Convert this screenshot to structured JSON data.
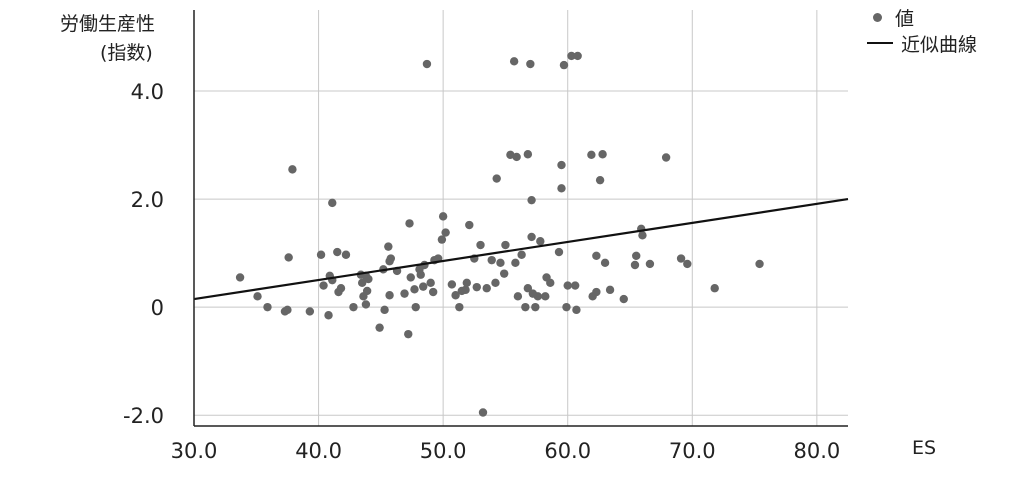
{
  "chart_data": {
    "type": "scatter",
    "title": "",
    "ylabel_lines": [
      "労働生産性",
      "(指数)"
    ],
    "xlabel": "ES",
    "xlim": [
      30,
      82.5
    ],
    "ylim": [
      -2.2,
      5.5
    ],
    "xticks": [
      "30.0",
      "40.0",
      "50.0",
      "60.0",
      "70.0",
      "80.0"
    ],
    "xtick_values": [
      30,
      40,
      50,
      60,
      70,
      80
    ],
    "yticks": [
      "-2.0",
      "0",
      "2.0",
      "4.0"
    ],
    "ytick_values": [
      -2,
      0,
      2,
      4
    ],
    "grid": "vertical and horizontal",
    "legend_position": "top-right",
    "series": [
      {
        "name": "値",
        "kind": "points",
        "color": "#666666",
        "points": [
          [
            33.7,
            0.55
          ],
          [
            35.1,
            0.2
          ],
          [
            35.9,
            0.0
          ],
          [
            37.3,
            -0.08
          ],
          [
            37.5,
            -0.05
          ],
          [
            37.6,
            0.92
          ],
          [
            37.9,
            2.55
          ],
          [
            39.3,
            -0.08
          ],
          [
            40.2,
            0.97
          ],
          [
            40.4,
            0.4
          ],
          [
            40.8,
            -0.15
          ],
          [
            40.9,
            0.58
          ],
          [
            41.1,
            1.93
          ],
          [
            41.1,
            0.5
          ],
          [
            41.5,
            1.02
          ],
          [
            41.6,
            0.28
          ],
          [
            41.8,
            0.35
          ],
          [
            42.2,
            0.97
          ],
          [
            42.8,
            0.0
          ],
          [
            43.4,
            0.6
          ],
          [
            43.5,
            0.45
          ],
          [
            43.6,
            0.2
          ],
          [
            43.8,
            0.58
          ],
          [
            43.8,
            0.05
          ],
          [
            43.9,
            0.3
          ],
          [
            44.0,
            0.52
          ],
          [
            44.9,
            -0.38
          ],
          [
            45.2,
            0.7
          ],
          [
            45.3,
            -0.05
          ],
          [
            45.6,
            1.12
          ],
          [
            45.7,
            0.85
          ],
          [
            45.7,
            0.22
          ],
          [
            45.8,
            0.9
          ],
          [
            46.3,
            0.67
          ],
          [
            46.9,
            0.25
          ],
          [
            47.2,
            -0.5
          ],
          [
            47.3,
            1.55
          ],
          [
            47.4,
            0.55
          ],
          [
            47.7,
            0.33
          ],
          [
            47.8,
            0.0
          ],
          [
            48.1,
            0.7
          ],
          [
            48.2,
            0.6
          ],
          [
            48.4,
            0.38
          ],
          [
            48.5,
            0.78
          ],
          [
            48.7,
            4.5
          ],
          [
            49.0,
            0.45
          ],
          [
            49.2,
            0.28
          ],
          [
            49.3,
            0.87
          ],
          [
            49.6,
            0.9
          ],
          [
            49.9,
            1.25
          ],
          [
            50.0,
            1.68
          ],
          [
            50.2,
            1.38
          ],
          [
            50.7,
            0.42
          ],
          [
            51.0,
            0.22
          ],
          [
            51.3,
            0.0
          ],
          [
            51.5,
            0.3
          ],
          [
            51.8,
            0.32
          ],
          [
            51.9,
            0.45
          ],
          [
            52.1,
            1.52
          ],
          [
            52.5,
            0.9
          ],
          [
            52.7,
            0.37
          ],
          [
            53.0,
            1.15
          ],
          [
            53.2,
            -1.95
          ],
          [
            53.5,
            0.35
          ],
          [
            53.9,
            0.87
          ],
          [
            54.2,
            0.45
          ],
          [
            54.3,
            2.38
          ],
          [
            54.6,
            0.82
          ],
          [
            54.9,
            0.62
          ],
          [
            55.0,
            1.15
          ],
          [
            55.4,
            2.82
          ],
          [
            55.7,
            4.55
          ],
          [
            55.8,
            0.82
          ],
          [
            55.9,
            2.78
          ],
          [
            56.0,
            0.2
          ],
          [
            56.3,
            0.97
          ],
          [
            56.6,
            0.0
          ],
          [
            56.8,
            2.83
          ],
          [
            56.8,
            0.35
          ],
          [
            57.1,
            1.98
          ],
          [
            57.0,
            4.5
          ],
          [
            57.1,
            1.3
          ],
          [
            57.2,
            0.25
          ],
          [
            57.4,
            0.0
          ],
          [
            57.6,
            0.2
          ],
          [
            57.8,
            1.22
          ],
          [
            58.2,
            0.2
          ],
          [
            58.3,
            0.55
          ],
          [
            58.6,
            0.45
          ],
          [
            59.3,
            1.02
          ],
          [
            59.5,
            2.63
          ],
          [
            59.5,
            2.2
          ],
          [
            59.7,
            4.48
          ],
          [
            59.9,
            0.0
          ],
          [
            60.0,
            0.4
          ],
          [
            60.3,
            4.65
          ],
          [
            60.6,
            0.4
          ],
          [
            60.7,
            -0.05
          ],
          [
            60.8,
            4.65
          ],
          [
            61.9,
            2.82
          ],
          [
            62.0,
            0.2
          ],
          [
            62.3,
            0.95
          ],
          [
            62.3,
            0.28
          ],
          [
            62.6,
            2.35
          ],
          [
            62.8,
            2.83
          ],
          [
            63.0,
            0.82
          ],
          [
            63.4,
            0.32
          ],
          [
            64.5,
            0.15
          ],
          [
            65.4,
            0.78
          ],
          [
            65.5,
            0.95
          ],
          [
            65.9,
            1.45
          ],
          [
            66.0,
            1.33
          ],
          [
            66.6,
            0.8
          ],
          [
            67.9,
            2.77
          ],
          [
            69.1,
            0.9
          ],
          [
            69.6,
            0.8
          ],
          [
            71.8,
            0.35
          ],
          [
            75.4,
            0.8
          ]
        ]
      },
      {
        "name": "近似曲線",
        "kind": "line",
        "color": "#111111",
        "x": [
          30,
          82.5
        ],
        "y": [
          0.15,
          2.0
        ]
      }
    ]
  }
}
